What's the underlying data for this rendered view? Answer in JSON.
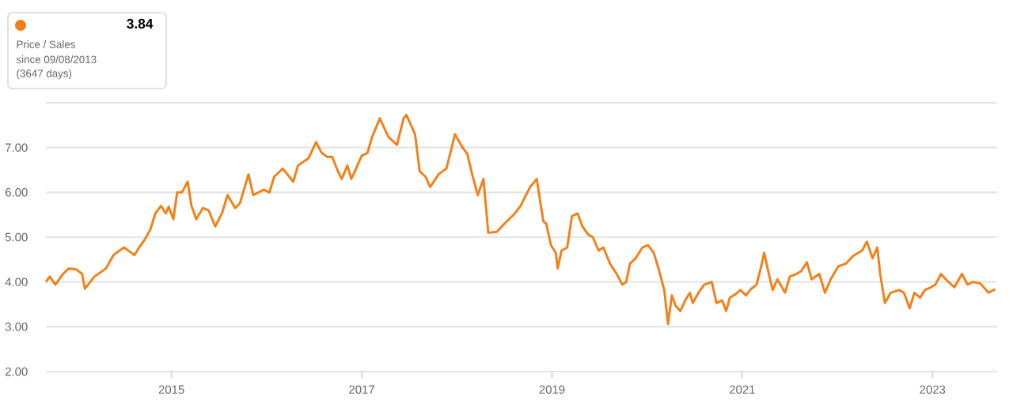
{
  "chart_data": {
    "type": "line",
    "grid": "y",
    "annotations": [
      "3.84",
      "Price / Sales",
      "since 09/08/2013",
      "(3647 days)"
    ],
    "xlim": [
      2013.68,
      2023.68
    ],
    "xticks": [
      2015,
      2017,
      2019,
      2021,
      2023
    ],
    "ylim": [
      2,
      8
    ],
    "yticks": [
      {
        "value": 2,
        "label": "2.00"
      },
      {
        "value": 3,
        "label": "3.00"
      },
      {
        "value": 4,
        "label": "4.00"
      },
      {
        "value": 5,
        "label": "5.00"
      },
      {
        "value": 6,
        "label": "6.00"
      },
      {
        "value": 7,
        "label": "7.00"
      },
      {
        "value": 8,
        "label": null
      }
    ],
    "series": [
      {
        "color": "#f57f17",
        "x": [
          2013.68,
          2013.72,
          2013.78,
          2013.86,
          2013.92,
          2014.0,
          2014.06,
          2014.09,
          2014.19,
          2014.31,
          2014.39,
          2014.5,
          2014.58,
          2014.61,
          2014.67,
          2014.72,
          2014.78,
          2014.83,
          2014.89,
          2014.94,
          2014.97,
          2015.02,
          2015.06,
          2015.11,
          2015.17,
          2015.21,
          2015.26,
          2015.33,
          2015.39,
          2015.46,
          2015.53,
          2015.59,
          2015.67,
          2015.72,
          2015.81,
          2015.86,
          2015.97,
          2016.03,
          2016.08,
          2016.17,
          2016.28,
          2016.33,
          2016.44,
          2016.52,
          2016.58,
          2016.64,
          2016.69,
          2016.75,
          2016.79,
          2016.85,
          2016.89,
          2016.94,
          2017.0,
          2017.06,
          2017.11,
          2017.19,
          2017.28,
          2017.37,
          2017.44,
          2017.47,
          2017.56,
          2017.61,
          2017.67,
          2017.72,
          2017.81,
          2017.89,
          2017.96,
          2017.98,
          2018.06,
          2018.11,
          2018.16,
          2018.22,
          2018.28,
          2018.33,
          2018.42,
          2018.5,
          2018.61,
          2018.67,
          2018.77,
          2018.84,
          2018.87,
          2018.91,
          2018.94,
          2018.99,
          2019.04,
          2019.06,
          2019.1,
          2019.16,
          2019.21,
          2019.27,
          2019.32,
          2019.38,
          2019.43,
          2019.49,
          2019.54,
          2019.61,
          2019.68,
          2019.74,
          2019.78,
          2019.82,
          2019.88,
          2019.95,
          2020.01,
          2020.07,
          2020.12,
          2020.18,
          2020.22,
          2020.26,
          2020.3,
          2020.35,
          2020.4,
          2020.45,
          2020.48,
          2020.54,
          2020.6,
          2020.68,
          2020.73,
          2020.79,
          2020.83,
          2020.87,
          2020.93,
          2020.98,
          2021.04,
          2021.09,
          2021.15,
          2021.2,
          2021.23,
          2021.28,
          2021.32,
          2021.37,
          2021.45,
          2021.5,
          2021.57,
          2021.62,
          2021.68,
          2021.73,
          2021.81,
          2021.87,
          2021.93,
          2022.01,
          2022.09,
          2022.17,
          2022.26,
          2022.31,
          2022.37,
          2022.42,
          2022.45,
          2022.5,
          2022.56,
          2022.65,
          2022.7,
          2022.76,
          2022.81,
          2022.87,
          2022.92,
          2022.98,
          2023.03,
          2023.09,
          2023.14,
          2023.23,
          2023.31,
          2023.37,
          2023.42,
          2023.5,
          2023.59,
          2023.66
        ],
        "values": [
          4.0,
          4.12,
          3.94,
          4.18,
          4.3,
          4.28,
          4.18,
          3.85,
          4.12,
          4.3,
          4.6,
          4.77,
          4.65,
          4.6,
          4.8,
          4.95,
          5.18,
          5.53,
          5.7,
          5.53,
          5.68,
          5.4,
          6.0,
          6.0,
          6.24,
          5.7,
          5.4,
          5.65,
          5.6,
          5.24,
          5.53,
          5.94,
          5.65,
          5.76,
          6.4,
          5.94,
          6.06,
          6.0,
          6.35,
          6.53,
          6.24,
          6.6,
          6.76,
          7.12,
          6.88,
          6.79,
          6.79,
          6.47,
          6.3,
          6.6,
          6.3,
          6.53,
          6.82,
          6.88,
          7.24,
          7.65,
          7.24,
          7.06,
          7.65,
          7.73,
          7.3,
          6.47,
          6.35,
          6.12,
          6.41,
          6.53,
          7.12,
          7.3,
          7.0,
          6.86,
          6.41,
          5.94,
          6.3,
          5.1,
          5.12,
          5.3,
          5.53,
          5.7,
          6.12,
          6.3,
          5.88,
          5.35,
          5.3,
          4.82,
          4.65,
          4.3,
          4.7,
          4.77,
          5.47,
          5.53,
          5.24,
          5.06,
          5.0,
          4.7,
          4.77,
          4.41,
          4.18,
          3.94,
          4.0,
          4.41,
          4.53,
          4.77,
          4.82,
          4.65,
          4.3,
          3.82,
          3.06,
          3.7,
          3.47,
          3.35,
          3.59,
          3.76,
          3.53,
          3.76,
          3.94,
          4.0,
          3.53,
          3.59,
          3.35,
          3.65,
          3.73,
          3.82,
          3.7,
          3.84,
          3.94,
          4.35,
          4.65,
          4.18,
          3.82,
          4.06,
          3.76,
          4.12,
          4.18,
          4.24,
          4.44,
          4.06,
          4.18,
          3.76,
          4.06,
          4.35,
          4.41,
          4.59,
          4.7,
          4.9,
          4.53,
          4.77,
          4.18,
          3.53,
          3.76,
          3.82,
          3.76,
          3.41,
          3.76,
          3.65,
          3.82,
          3.88,
          3.94,
          4.18,
          4.06,
          3.88,
          4.18,
          3.94,
          4.0,
          3.97,
          3.76,
          3.84
        ]
      }
    ]
  }
}
